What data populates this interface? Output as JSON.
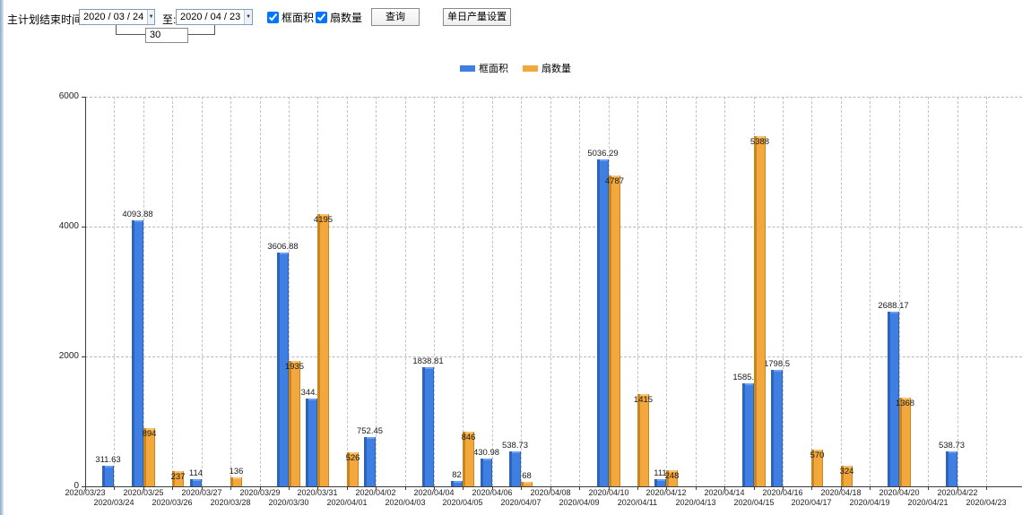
{
  "toolbar": {
    "plan_end_label": "主计划结束时间:",
    "date_from": "2020 / 03 / 24",
    "to_label": "至:",
    "date_to": "2020 / 04 / 23",
    "interval_days": "30",
    "series_checkboxes": [
      {
        "label": "框面积",
        "checked": true
      },
      {
        "label": "扇数量",
        "checked": true
      }
    ],
    "query_button": "查询",
    "daily_output_button": "单日产量设置"
  },
  "legend": {
    "items": [
      {
        "label": "框面积",
        "color": "#3e7fe1"
      },
      {
        "label": "扇数量",
        "color": "#f3a83d"
      }
    ]
  },
  "chart_data": {
    "type": "bar",
    "title": "",
    "xlabel": "",
    "ylabel": "",
    "ylim": [
      0,
      6000
    ],
    "yticks": [
      0,
      2000,
      4000,
      6000
    ],
    "grid": "dashed",
    "legend_position": "top-center",
    "categories": [
      "2020/03/23",
      "2020/03/24",
      "2020/03/25",
      "2020/03/26",
      "2020/03/27",
      "2020/03/28",
      "2020/03/29",
      "2020/03/30",
      "2020/03/31",
      "2020/04/01",
      "2020/04/02",
      "2020/04/03",
      "2020/04/04",
      "2020/04/05",
      "2020/04/06",
      "2020/04/07",
      "2020/04/08",
      "2020/04/09",
      "2020/04/10",
      "2020/04/11",
      "2020/04/12",
      "2020/04/13",
      "2020/04/14",
      "2020/04/15",
      "2020/04/16",
      "2020/04/17",
      "2020/04/18",
      "2020/04/19",
      "2020/04/20",
      "2020/04/21",
      "2020/04/22",
      "2020/04/23"
    ],
    "series": [
      {
        "name": "框面积",
        "color": "#3e7fe1",
        "color_dark": "#2d63bb",
        "color_light": "#6aa0ef",
        "values": [
          null,
          311.63,
          4093.88,
          null,
          114,
          null,
          null,
          3606.88,
          1344.95,
          null,
          752.45,
          null,
          1838.81,
          82,
          430.98,
          538.73,
          null,
          null,
          5036.29,
          null,
          111,
          null,
          null,
          1585.96,
          1798.5,
          null,
          null,
          null,
          2688.17,
          null,
          538.73,
          null
        ]
      },
      {
        "name": "扇数量",
        "color": "#f3a83d",
        "color_dark": "#c9851e",
        "color_light": "#f8c371",
        "values": [
          null,
          null,
          894,
          237,
          null,
          136,
          null,
          1935,
          4195,
          526,
          null,
          null,
          null,
          846,
          null,
          68,
          null,
          null,
          4787,
          1415,
          248,
          null,
          null,
          5388,
          null,
          570,
          324,
          null,
          1368,
          null,
          null,
          null
        ]
      }
    ]
  }
}
